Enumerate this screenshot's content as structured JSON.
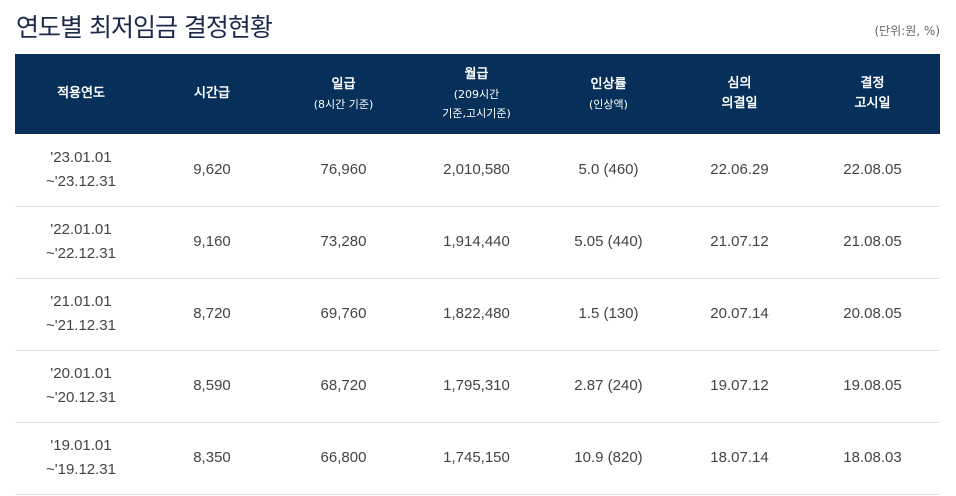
{
  "title": "연도별 최저임금 결정현황",
  "unit": "(단위:원, %)",
  "headers": {
    "period": {
      "main": "적용연도"
    },
    "hourly": {
      "main": "시간급"
    },
    "daily": {
      "main": "일급",
      "sub1": "(8시간 기준)"
    },
    "monthly": {
      "main": "월급",
      "sub1": "(209시간",
      "sub2": "기준,고시기준)"
    },
    "increase": {
      "main": "인상률",
      "sub1": "(인상액)"
    },
    "resolution": {
      "main1": "심의",
      "main2": "의결일"
    },
    "notice": {
      "main1": "결정",
      "main2": "고시일"
    }
  },
  "rows": [
    {
      "start": "'23.01.01",
      "end": "~'23.12.31",
      "hourly": "9,620",
      "daily": "76,960",
      "monthly": "2,010,580",
      "increase": "5.0 (460)",
      "resolution": "22.06.29",
      "notice": "22.08.05"
    },
    {
      "start": "'22.01.01",
      "end": "~'22.12.31",
      "hourly": "9,160",
      "daily": "73,280",
      "monthly": "1,914,440",
      "increase": "5.05 (440)",
      "resolution": "21.07.12",
      "notice": "21.08.05"
    },
    {
      "start": "'21.01.01",
      "end": "~'21.12.31",
      "hourly": "8,720",
      "daily": "69,760",
      "monthly": "1,822,480",
      "increase": "1.5 (130)",
      "resolution": "20.07.14",
      "notice": "20.08.05"
    },
    {
      "start": "'20.01.01",
      "end": "~'20.12.31",
      "hourly": "8,590",
      "daily": "68,720",
      "monthly": "1,795,310",
      "increase": "2.87 (240)",
      "resolution": "19.07.12",
      "notice": "19.08.05"
    },
    {
      "start": "'19.01.01",
      "end": "~'19.12.31",
      "hourly": "8,350",
      "daily": "66,800",
      "monthly": "1,745,150",
      "increase": "10.9 (820)",
      "resolution": "18.07.14",
      "notice": "18.08.03"
    }
  ]
}
